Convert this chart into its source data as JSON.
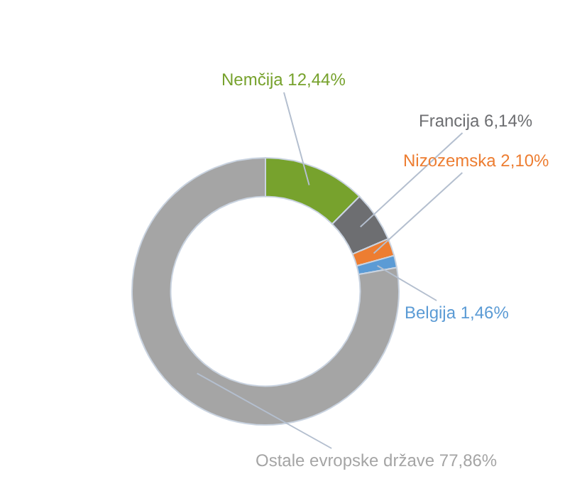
{
  "chart_data": {
    "type": "donut",
    "categories": [
      "Nemčija",
      "Francija",
      "Nizozemska",
      "Belgija",
      "Ostale evropske države"
    ],
    "values": [
      12.44,
      6.14,
      2.1,
      1.46,
      77.86
    ],
    "value_labels": [
      "12,44%",
      "6,14%",
      "2,10%",
      "1,46%",
      "77,86%"
    ],
    "colors": [
      "#77a22d",
      "#6d6e71",
      "#ed7d31",
      "#5b9bd5",
      "#a5a5a5"
    ],
    "legend": false
  }
}
